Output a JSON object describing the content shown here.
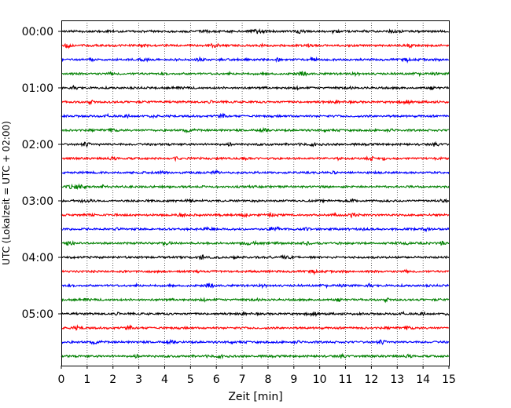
{
  "chart_data": {
    "type": "line",
    "title": "",
    "xlabel": "Zeit  [min]",
    "ylabel": "UTC (Lokalzeit = UTC + 02:00)",
    "xlim": [
      0,
      15
    ],
    "x_ticks": [
      0,
      1,
      2,
      3,
      4,
      5,
      6,
      7,
      8,
      9,
      10,
      11,
      12,
      13,
      14,
      15
    ],
    "y_tick_labels": [
      "00:00",
      "01:00",
      "02:00",
      "03:00",
      "04:00",
      "05:00"
    ],
    "trace_count": 24,
    "minutes_per_trace": 15,
    "grid": "vertical dotted lines at each minute",
    "trace_colors": [
      "#000000",
      "#ff0000",
      "#0000ff",
      "#008000"
    ],
    "legend": "none"
  }
}
